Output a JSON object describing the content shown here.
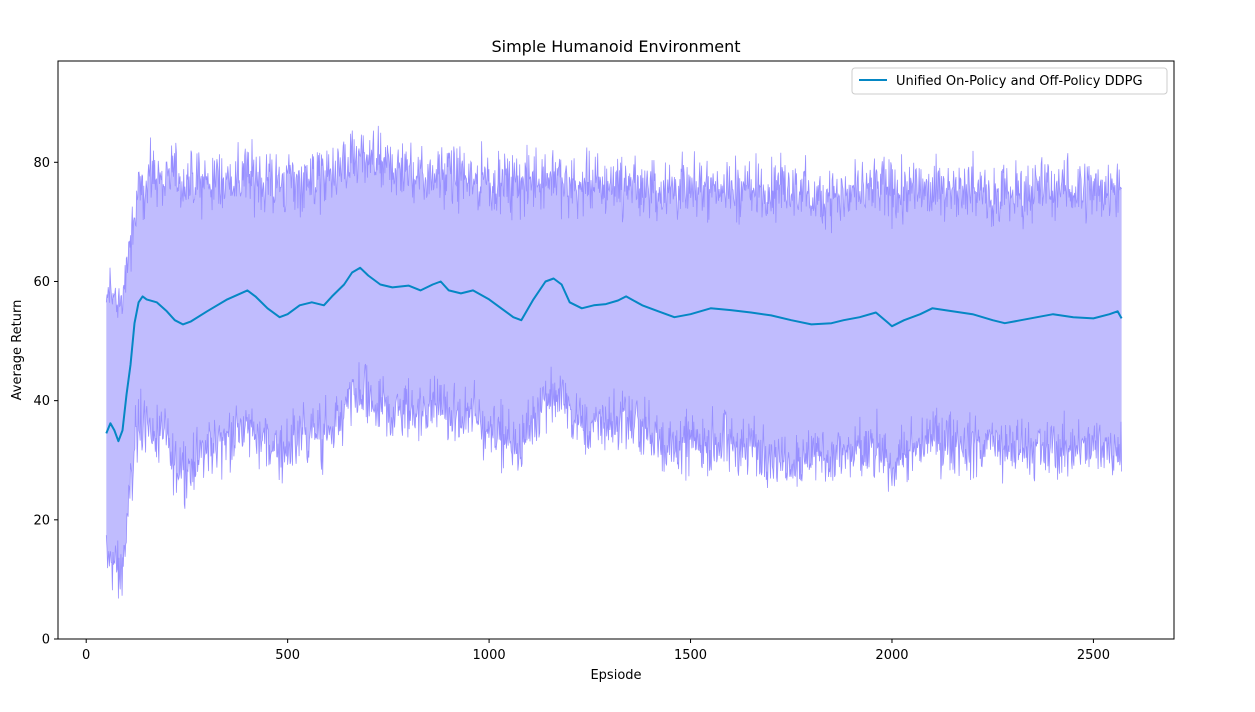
{
  "chart_data": {
    "type": "line",
    "title": "Simple Humanoid Environment",
    "xlabel": "Epsiode",
    "ylabel": "Average Return",
    "xlim": [
      -70,
      2700
    ],
    "ylim": [
      0,
      97
    ],
    "xticks": [
      0,
      500,
      1000,
      1500,
      2000,
      2500
    ],
    "yticks": [
      0,
      20,
      40,
      60,
      80
    ],
    "grid": false,
    "legend": {
      "position": "top-right",
      "entries": [
        "Unified On-Policy and Off-Policy DDPG"
      ]
    },
    "series": [
      {
        "name": "Unified On-Policy and Off-Policy DDPG",
        "color": "#0587c4",
        "band_fill": "#c0bcfe",
        "band_edge": "#8f86ff",
        "x": [
          50,
          60,
          70,
          80,
          90,
          100,
          110,
          120,
          130,
          140,
          150,
          175,
          200,
          220,
          240,
          260,
          300,
          350,
          400,
          420,
          450,
          480,
          500,
          530,
          560,
          590,
          610,
          640,
          660,
          680,
          700,
          730,
          760,
          800,
          830,
          860,
          880,
          900,
          930,
          960,
          1000,
          1030,
          1060,
          1080,
          1110,
          1140,
          1160,
          1180,
          1200,
          1230,
          1260,
          1290,
          1320,
          1340,
          1380,
          1420,
          1460,
          1500,
          1550,
          1600,
          1650,
          1700,
          1750,
          1800,
          1850,
          1880,
          1920,
          1960,
          2000,
          2030,
          2070,
          2100,
          2150,
          2200,
          2250,
          2280,
          2320,
          2360,
          2400,
          2450,
          2500,
          2540,
          2560,
          2570
        ],
        "mean": [
          34.5,
          36.2,
          35.0,
          33.2,
          35.0,
          41.0,
          46.0,
          53.0,
          56.5,
          57.5,
          57.0,
          56.5,
          55.0,
          53.5,
          52.8,
          53.3,
          55.0,
          57.0,
          58.5,
          57.5,
          55.5,
          54.0,
          54.5,
          56.0,
          56.5,
          56.0,
          57.5,
          59.5,
          61.5,
          62.3,
          61.0,
          59.5,
          59.0,
          59.3,
          58.5,
          59.5,
          60.0,
          58.5,
          58.0,
          58.5,
          57.0,
          55.5,
          54.0,
          53.5,
          57.0,
          60.0,
          60.5,
          59.5,
          56.5,
          55.5,
          56.0,
          56.2,
          56.8,
          57.5,
          56.0,
          55.0,
          54.0,
          54.5,
          55.5,
          55.2,
          54.8,
          54.3,
          53.5,
          52.8,
          53.0,
          53.5,
          54.0,
          54.8,
          52.5,
          53.5,
          54.5,
          55.5,
          55.0,
          54.5,
          53.5,
          53.0,
          53.5,
          54.0,
          54.5,
          54.0,
          53.8,
          54.5,
          55.0,
          53.8
        ],
        "upper": [
          56.0,
          59.0,
          58.0,
          56.0,
          57.5,
          62.0,
          66.0,
          70.0,
          74.0,
          76.0,
          77.0,
          77.5,
          78.0,
          77.5,
          76.5,
          76.0,
          76.5,
          77.0,
          77.5,
          77.5,
          77.0,
          76.5,
          76.5,
          77.0,
          77.5,
          77.5,
          78.0,
          79.0,
          80.0,
          80.5,
          80.0,
          79.5,
          79.0,
          78.5,
          78.0,
          78.0,
          79.0,
          78.0,
          77.5,
          77.5,
          77.0,
          76.5,
          76.0,
          76.0,
          77.0,
          77.5,
          77.5,
          77.0,
          76.0,
          76.0,
          76.0,
          76.0,
          76.5,
          76.5,
          76.0,
          75.5,
          75.5,
          75.5,
          76.0,
          75.5,
          75.5,
          75.0,
          75.0,
          74.5,
          74.5,
          74.5,
          75.0,
          75.5,
          74.5,
          75.0,
          75.5,
          76.0,
          76.0,
          75.5,
          75.0,
          75.0,
          75.0,
          75.5,
          75.5,
          75.5,
          75.5,
          75.5,
          75.5,
          75.5
        ],
        "lower": [
          13.0,
          14.0,
          12.0,
          10.5,
          12.0,
          18.0,
          25.0,
          33.0,
          36.0,
          37.0,
          36.0,
          34.5,
          32.0,
          30.0,
          29.0,
          30.0,
          32.0,
          34.0,
          35.5,
          34.5,
          33.0,
          31.5,
          32.0,
          34.0,
          34.5,
          34.0,
          35.0,
          37.5,
          40.0,
          41.0,
          40.0,
          38.5,
          38.0,
          38.5,
          38.0,
          38.5,
          39.0,
          37.5,
          37.0,
          37.0,
          35.5,
          34.5,
          33.0,
          33.0,
          37.0,
          41.0,
          41.5,
          40.5,
          37.5,
          36.0,
          36.0,
          36.0,
          36.5,
          37.0,
          35.0,
          33.5,
          32.0,
          32.5,
          33.0,
          32.5,
          32.0,
          31.5,
          31.0,
          30.5,
          30.5,
          30.5,
          31.0,
          32.0,
          30.0,
          31.0,
          32.0,
          33.0,
          33.0,
          32.5,
          32.0,
          31.5,
          32.0,
          32.0,
          32.0,
          32.0,
          32.0,
          32.5,
          33.0,
          32.0
        ]
      }
    ]
  }
}
